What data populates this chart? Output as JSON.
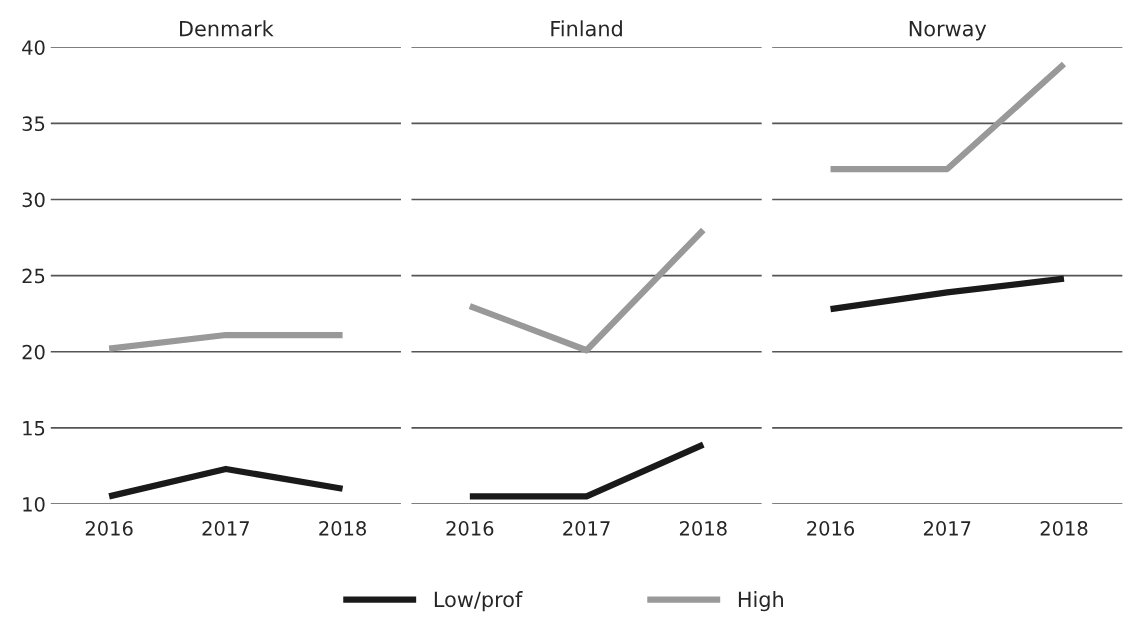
{
  "chart_data": [
    {
      "type": "line",
      "title": "Denmark",
      "categories": [
        "2016",
        "2017",
        "2018"
      ],
      "ylim": [
        10,
        40
      ],
      "yticks": [
        10,
        15,
        20,
        25,
        30,
        35,
        40
      ],
      "grid": "y",
      "legend": "bottom",
      "marker": "none",
      "series": [
        {
          "name": "Low/prof",
          "color": "#1a1a1a",
          "values": [
            10.5,
            12.3,
            11.0
          ]
        },
        {
          "name": "High",
          "color": "#999999",
          "values": [
            20.2,
            21.1,
            21.1
          ]
        }
      ]
    },
    {
      "type": "line",
      "title": "Finland",
      "categories": [
        "2016",
        "2017",
        "2018"
      ],
      "ylim": [
        10,
        40
      ],
      "yticks": [
        10,
        15,
        20,
        25,
        30,
        35,
        40
      ],
      "grid": "y",
      "tick_labels": "x",
      "marker": "none",
      "series": [
        {
          "color": "#1a1a1a",
          "values": [
            10.5,
            10.5,
            13.9
          ]
        },
        {
          "color": "#999999",
          "values": [
            23.0,
            20.1,
            28.0
          ]
        }
      ]
    },
    {
      "type": "line",
      "title": "Norway",
      "categories": [
        "2016",
        "2017",
        "2018"
      ],
      "ylim": [
        10,
        40
      ],
      "yticks": [
        10,
        15,
        20,
        25,
        30,
        35,
        40
      ],
      "grid": "y",
      "tick_labels": "x",
      "marker": "none",
      "series": [
        {
          "color": "#1a1a1a",
          "values": [
            22.8,
            23.9,
            24.8
          ]
        },
        {
          "color": "#999999",
          "values": [
            32.0,
            32.0,
            38.9
          ]
        }
      ]
    }
  ]
}
